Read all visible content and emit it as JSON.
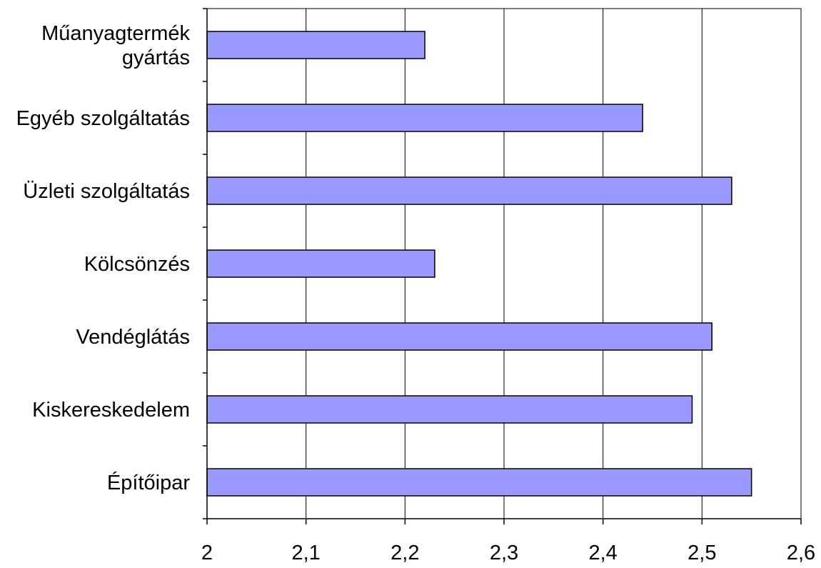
{
  "chart_data": {
    "type": "bar",
    "orientation": "horizontal",
    "categories": [
      "Műanyagtermék gyártás",
      "Egyéb szolgáltatás",
      "Üzleti szolgáltatás",
      "Kölcsönzés",
      "Vendéglátás",
      "Kiskereskedelem",
      "Építőipar"
    ],
    "category_label_lines": [
      [
        "Műanyagtermék",
        "gyártás"
      ],
      [
        "Egyéb szolgáltatás"
      ],
      [
        "Üzleti szolgáltatás"
      ],
      [
        "Kölcsönzés"
      ],
      [
        "Vendéglátás"
      ],
      [
        "Kiskereskedelem"
      ],
      [
        "Építőipar"
      ]
    ],
    "values": [
      2.22,
      2.44,
      2.53,
      2.23,
      2.51,
      2.49,
      2.55
    ],
    "xlim": [
      2,
      2.6
    ],
    "xticks": [
      2,
      2.1,
      2.2,
      2.3,
      2.4,
      2.5,
      2.6
    ],
    "xtick_labels": [
      "2",
      "2,1",
      "2,2",
      "2,3",
      "2,4",
      "2,5",
      "2,6"
    ],
    "title": "",
    "xlabel": "",
    "ylabel": "",
    "grid": "vertical",
    "legend": "none",
    "bar_color": "#9999ff",
    "bar_outline_color": "#000000"
  }
}
